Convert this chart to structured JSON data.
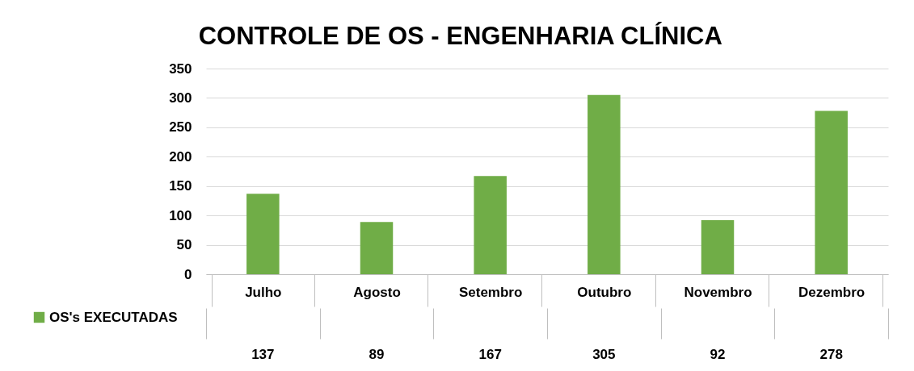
{
  "chart_data": {
    "type": "bar",
    "title": "CONTROLE DE OS - ENGENHARIA CLÍNICA",
    "categories": [
      "Julho",
      "Agosto",
      "Setembro",
      "Outubro",
      "Novembro",
      "Dezembro"
    ],
    "series": [
      {
        "name": "OS's EXECUTADAS",
        "color": "#70ad47",
        "values": [
          137,
          89,
          167,
          305,
          92,
          278
        ]
      }
    ],
    "ylim": [
      0,
      350
    ],
    "yticks": [
      0,
      50,
      100,
      150,
      200,
      250,
      300,
      350
    ],
    "grid": "y",
    "legend": "bottom",
    "data_labels": true
  }
}
